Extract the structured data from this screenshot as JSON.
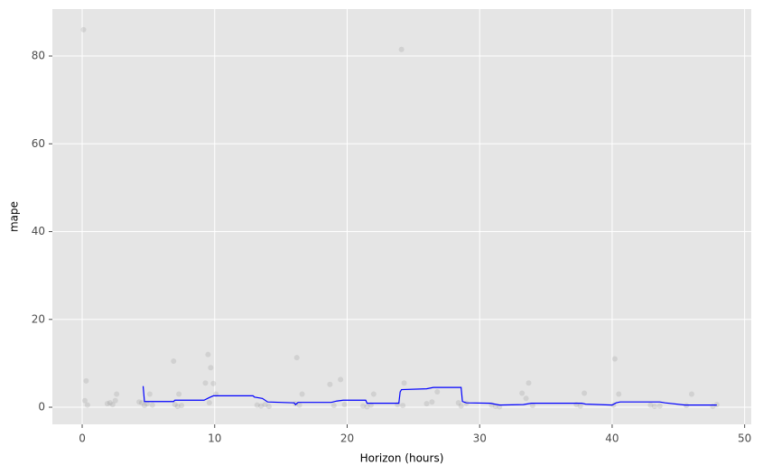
{
  "chart_data": {
    "type": "scatter",
    "xlabel": "Horizon (hours)",
    "ylabel": "mape",
    "xlim": [
      -2.25,
      50.5
    ],
    "ylim": [
      -3.9,
      90.7
    ],
    "xticks": [
      0,
      10,
      20,
      30,
      40,
      50
    ],
    "yticks": [
      0,
      20,
      40,
      60,
      80
    ],
    "grid": true,
    "background": "#e5e5e5",
    "point_color": "#808080",
    "line_color": "#0000ff",
    "points": {
      "x": [
        0.1,
        0.2,
        0.3,
        0.4,
        1.9,
        2.1,
        2.3,
        2.5,
        2.6,
        4.3,
        4.5,
        4.7,
        4.9,
        5.1,
        5.3,
        6.9,
        7.0,
        7.2,
        7.3,
        7.5,
        9.3,
        9.5,
        9.6,
        9.7,
        9.9,
        10.1,
        13.2,
        13.5,
        13.8,
        14.1,
        16.1,
        16.2,
        16.4,
        16.6,
        18.7,
        19.0,
        19.5,
        19.8,
        21.2,
        21.5,
        21.8,
        22.0,
        23.8,
        24.1,
        24.2,
        24.3,
        26.0,
        26.4,
        26.8,
        28.4,
        28.6,
        29.0,
        30.9,
        31.2,
        31.5,
        33.2,
        33.5,
        33.7,
        34.0,
        37.3,
        37.6,
        37.9,
        40.1,
        40.2,
        40.5,
        42.9,
        43.2,
        43.6,
        45.6,
        46.0,
        47.6,
        47.9
      ],
      "y": [
        86.0,
        1.5,
        6.0,
        0.5,
        0.8,
        1.0,
        0.6,
        1.5,
        3.0,
        1.2,
        1.0,
        0.4,
        0.8,
        3.0,
        0.5,
        10.5,
        0.6,
        0.2,
        3.0,
        0.4,
        5.5,
        12.0,
        1.0,
        9.0,
        5.4,
        3.0,
        0.5,
        0.3,
        0.6,
        0.2,
        0.8,
        11.3,
        0.5,
        3.0,
        5.2,
        0.4,
        6.3,
        0.6,
        0.3,
        0.1,
        0.5,
        3.0,
        0.6,
        81.5,
        0.4,
        5.5,
        0.8,
        1.2,
        3.5,
        1.0,
        0.3,
        0.9,
        0.5,
        0.2,
        0.1,
        3.2,
        2.0,
        5.5,
        0.4,
        0.6,
        0.3,
        3.2,
        0.5,
        11.0,
        3.0,
        0.5,
        0.2,
        0.3,
        0.4,
        3.0,
        0.2,
        0.6
      ]
    },
    "line": {
      "x": [
        4.6,
        4.7,
        6.9,
        7.0,
        9.2,
        9.6,
        9.9,
        12.9,
        13.0,
        13.6,
        14.0,
        16.0,
        16.1,
        16.3,
        18.8,
        19.2,
        19.7,
        21.4,
        21.5,
        23.9,
        24.0,
        24.1,
        26.0,
        26.5,
        28.6,
        28.7,
        29.0,
        30.8,
        31.5,
        33.3,
        33.9,
        37.7,
        38.0,
        40.0,
        40.3,
        40.6,
        43.6,
        44.0,
        45.5,
        47.9
      ],
      "y": [
        4.8,
        1.3,
        1.3,
        1.6,
        1.6,
        2.2,
        2.6,
        2.6,
        2.3,
        2.0,
        1.2,
        1.0,
        0.6,
        1.1,
        1.1,
        1.4,
        1.6,
        1.6,
        0.9,
        0.9,
        3.5,
        4.0,
        4.2,
        4.5,
        4.5,
        1.3,
        1.0,
        0.9,
        0.5,
        0.6,
        0.9,
        0.9,
        0.7,
        0.5,
        1.0,
        1.2,
        1.2,
        1.0,
        0.5,
        0.5
      ]
    }
  }
}
